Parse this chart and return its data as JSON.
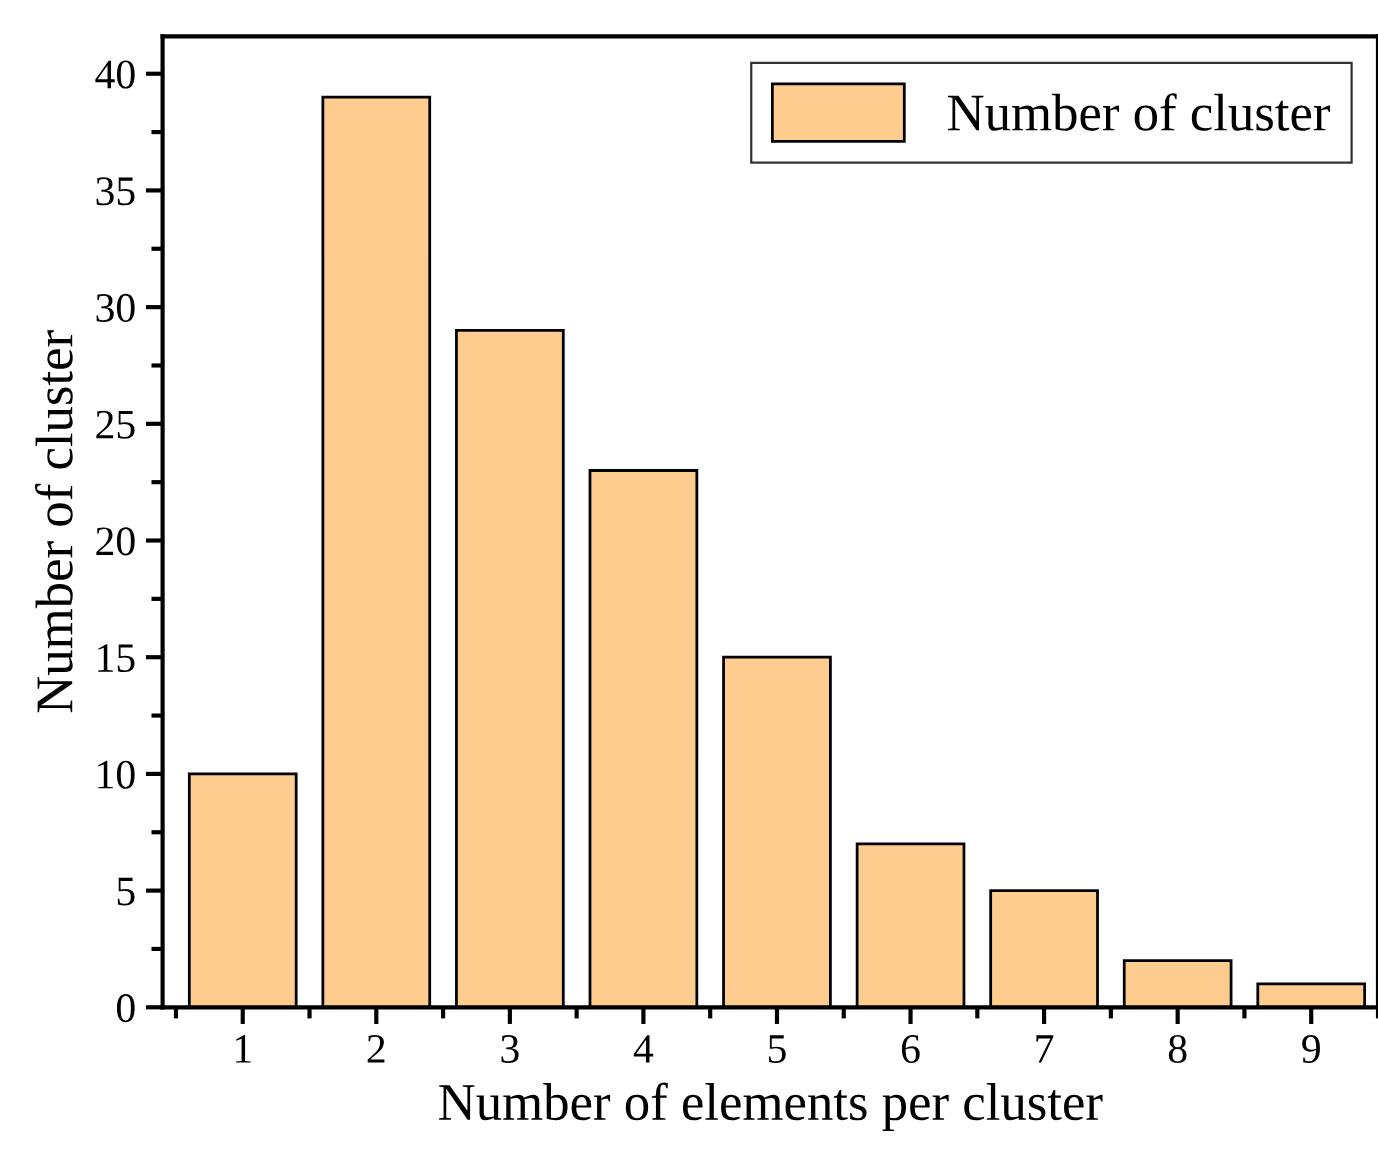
{
  "chart_data": {
    "type": "bar",
    "xlabel": "Number of elements per cluster",
    "ylabel": "Number of cluster",
    "categories": [
      "1",
      "2",
      "3",
      "4",
      "5",
      "6",
      "7",
      "8",
      "9"
    ],
    "series": [
      {
        "name": "Number of cluster",
        "color": "#ffcc8f",
        "values": [
          10,
          39,
          29,
          23,
          15,
          7,
          5,
          2,
          1
        ]
      }
    ],
    "ylim": [
      0,
      41.6
    ],
    "yticks": [
      0,
      5,
      10,
      15,
      20,
      25,
      30,
      35,
      40
    ],
    "grid": false,
    "legend": "top right"
  }
}
